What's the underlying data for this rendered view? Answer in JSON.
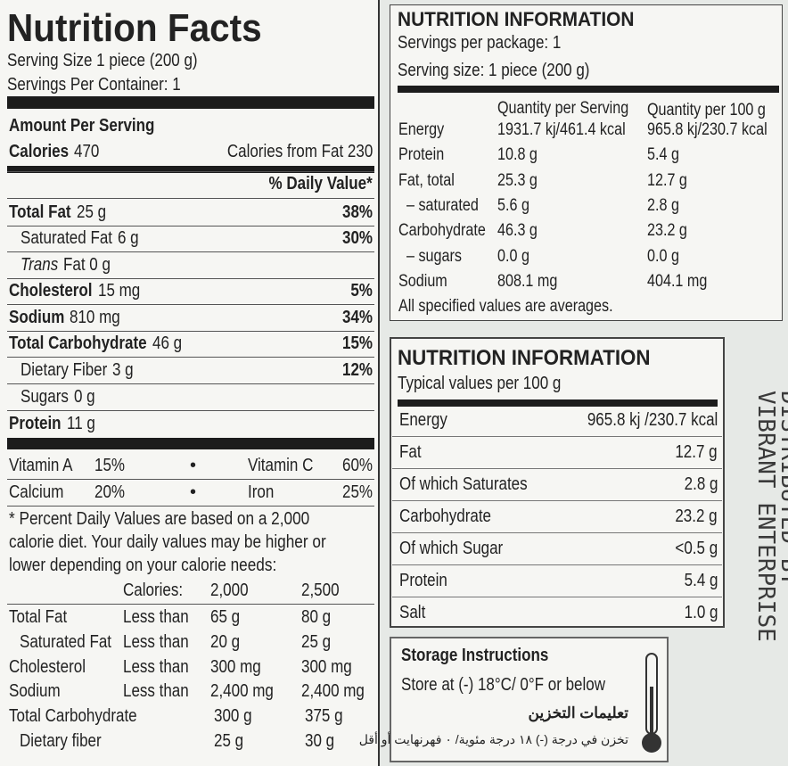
{
  "us": {
    "title": "Nutrition Facts",
    "serving_size": "Serving Size 1 piece (200 g)",
    "servings_per_container": "Servings Per Container: 1",
    "amount_per_serving": "Amount Per Serving",
    "calories_label": "Calories",
    "calories_value": "470",
    "calories_from_fat": "Calories from Fat 230",
    "daily_value_header": "% Daily Value*",
    "rows": [
      [
        "Total Fat",
        "25 g",
        "38%"
      ],
      [
        "Saturated Fat",
        "6 g",
        "30%"
      ],
      [
        "Trans",
        "Fat 0 g"
      ],
      [
        "Cholesterol",
        "15 mg",
        "5%"
      ],
      [
        "Sodium",
        "810 mg",
        "34%"
      ],
      [
        "Total Carbohydrate",
        "46 g",
        "15%"
      ],
      [
        "Dietary Fiber",
        "3 g",
        "12%"
      ],
      [
        "Sugars",
        "0 g"
      ],
      [
        "Protein",
        "11 g"
      ]
    ],
    "vitamins": [
      [
        "Vitamin A",
        "15%",
        "Vitamin C",
        "60%"
      ],
      [
        "Calcium",
        "20%",
        "Iron",
        "25%"
      ]
    ],
    "footnote": [
      "* Percent Daily Values are based on a 2,000",
      "calorie diet. Your daily values may be higher or",
      "lower depending on your calorie needs:"
    ],
    "daily_header": [
      "Calories:",
      "2,000",
      "2,500"
    ],
    "daily_rows": [
      [
        "Total Fat",
        "Less than",
        "65 g",
        "80 g"
      ],
      [
        "Saturated Fat",
        "Less than",
        "20 g",
        "25 g"
      ],
      [
        "Cholesterol",
        "Less than",
        "300 mg",
        "300 mg"
      ],
      [
        "Sodium",
        "Less than",
        "2,400 mg",
        "2,400 mg"
      ],
      [
        "Total Carbohydrate",
        "300 g",
        "375 g"
      ],
      [
        "Dietary fiber",
        "25 g",
        "30 g"
      ]
    ]
  },
  "info": {
    "title": "NUTRITION INFORMATION",
    "servings_per_package": "Servings per package: 1",
    "serving_size": "Serving size: 1 piece (200 g)",
    "header": [
      "Quantity per Serving",
      "Quantity per 100 g"
    ],
    "rows": [
      [
        "Energy",
        "1931.7 kj/461.4 kcal",
        "965.8 kj/230.7 kcal"
      ],
      [
        "Protein",
        "10.8 g",
        "5.4 g"
      ],
      [
        "Fat, total",
        "25.3 g",
        "12.7 g"
      ],
      [
        "– saturated",
        "5.6 g",
        "2.8 g"
      ],
      [
        "Carbohydrate",
        "46.3 g",
        "23.2 g"
      ],
      [
        "– sugars",
        "0.0 g",
        "0.0 g"
      ],
      [
        "Sodium",
        "808.1 mg",
        "404.1 mg"
      ]
    ],
    "note": "All specified values are averages."
  },
  "typical": {
    "title": "NUTRITION INFORMATION",
    "subtitle": "Typical values per 100 g",
    "rows": [
      [
        "Energy",
        "965.8 kj /230.7 kcal"
      ],
      [
        "Fat",
        "12.7 g"
      ],
      [
        "Of which Saturates",
        "2.8 g"
      ],
      [
        "Carbohydrate",
        "23.2 g"
      ],
      [
        "Of which Sugar",
        "<0.5 g"
      ],
      [
        "Protein",
        "5.4 g"
      ],
      [
        "Salt",
        "1.0 g"
      ]
    ]
  },
  "storage": {
    "title": "Storage Instructions",
    "text": "Store at (-) 18°C/ 0°F or below",
    "arabic_title": "تعليمات التخزين",
    "arabic_text": "تخزن في درجة (-) ١٨ درجة مئوية/ ٠ فهرنهايت أو أقل"
  },
  "side": {
    "line1": "VIBRANT ENTERPRISE",
    "line2": "DISTRIBUTED BY"
  }
}
